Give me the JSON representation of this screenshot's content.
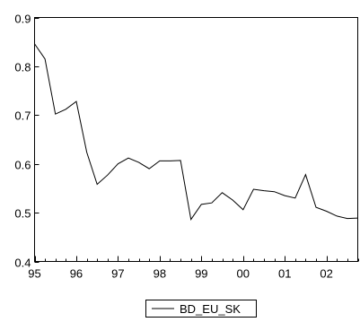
{
  "chart_data": {
    "type": "line",
    "title": "",
    "xlabel": "",
    "ylabel": "",
    "ylim": [
      0.4,
      0.9
    ],
    "y_ticks": [
      0.4,
      0.5,
      0.6,
      0.7,
      0.8,
      0.9
    ],
    "y_tick_labels": [
      "0.4",
      "0.5",
      "0.6",
      "0.7",
      "0.8",
      "0.9"
    ],
    "xlim": [
      1995.0,
      2002.75
    ],
    "x_ticks": [
      1995,
      1996,
      1997,
      1998,
      1999,
      2000,
      2001,
      2002
    ],
    "x_tick_labels": [
      "95",
      "96",
      "97",
      "98",
      "99",
      "00",
      "01",
      "02"
    ],
    "grid": false,
    "legend": "bottom-center",
    "series": [
      {
        "name": "BD_EU_SK",
        "color": "#000000",
        "x": [
          1995.0,
          1995.25,
          1995.5,
          1995.75,
          1996.0,
          1996.25,
          1996.5,
          1996.75,
          1997.0,
          1997.25,
          1997.5,
          1997.75,
          1998.0,
          1998.25,
          1998.5,
          1998.75,
          1999.0,
          1999.25,
          1999.5,
          1999.75,
          2000.0,
          2000.25,
          2000.5,
          2000.75,
          2001.0,
          2001.25,
          2001.5,
          2001.75,
          2002.0,
          2002.25,
          2002.5,
          2002.75
        ],
        "y": [
          0.846,
          0.815,
          0.702,
          0.712,
          0.728,
          0.624,
          0.558,
          0.577,
          0.6,
          0.612,
          0.603,
          0.59,
          0.606,
          0.606,
          0.607,
          0.486,
          0.517,
          0.52,
          0.541,
          0.526,
          0.506,
          0.548,
          0.545,
          0.543,
          0.535,
          0.53,
          0.578,
          0.511,
          0.503,
          0.493,
          0.488,
          0.489
        ]
      }
    ]
  }
}
